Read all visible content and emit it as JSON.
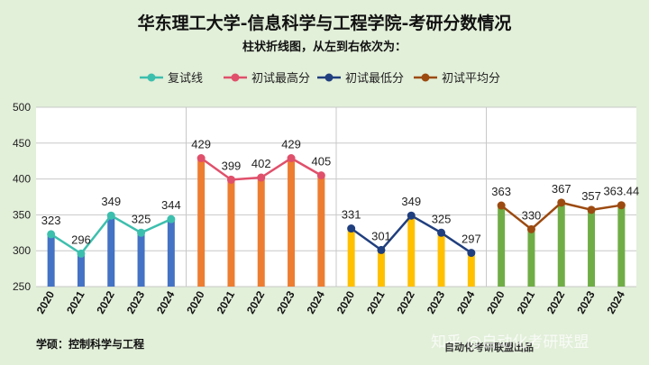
{
  "title": "华东理工大学-信息科学与工程学院-考研分数情况",
  "subtitle": "柱状折线图，从左到右依次为：",
  "footer_left": "学硕：控制科学与工程",
  "footer_right": "自动化考研联盟出品",
  "watermark": "知乎 @自动化考研联盟",
  "colors": {
    "background": "#e2efd9",
    "plot_area": "#ffffff",
    "grid": "#c8c8c8",
    "divider": "#c8c8c8"
  },
  "chart_data": {
    "type": "bar",
    "ylim": [
      250,
      500
    ],
    "yticks": [
      250,
      300,
      350,
      400,
      450,
      500
    ],
    "legend_position": "top",
    "grid": true,
    "groups": [
      {
        "name": "复试线",
        "categories": [
          "2020",
          "2021",
          "2022",
          "2023",
          "2024"
        ],
        "values": [
          323,
          296,
          349,
          325,
          344
        ],
        "labels": [
          "323",
          "296",
          "349",
          "325",
          "344"
        ],
        "bar_color": "#4472c4",
        "line_color": "#3dbfae"
      },
      {
        "name": "初试最高分",
        "categories": [
          "2020",
          "2021",
          "2022",
          "2023",
          "2024"
        ],
        "values": [
          429,
          399,
          402,
          429,
          405
        ],
        "labels": [
          "429",
          "399",
          "402",
          "429",
          "405"
        ],
        "bar_color": "#ed7d31",
        "line_color": "#e0506b"
      },
      {
        "name": "初试最低分",
        "categories": [
          "2020",
          "2021",
          "2022",
          "2023",
          "2024"
        ],
        "values": [
          331,
          301,
          349,
          325,
          297
        ],
        "labels": [
          "331",
          "301",
          "349",
          "325",
          "297"
        ],
        "bar_color": "#ffc000",
        "line_color": "#203f7f"
      },
      {
        "name": "初试平均分",
        "categories": [
          "2020",
          "2021",
          "2022",
          "2023",
          "2024"
        ],
        "values": [
          363,
          330,
          367,
          357,
          363.44
        ],
        "labels": [
          "363",
          "330",
          "367",
          "357",
          "363.44"
        ],
        "bar_color": "#70ad47",
        "line_color": "#9c4a10"
      }
    ]
  }
}
